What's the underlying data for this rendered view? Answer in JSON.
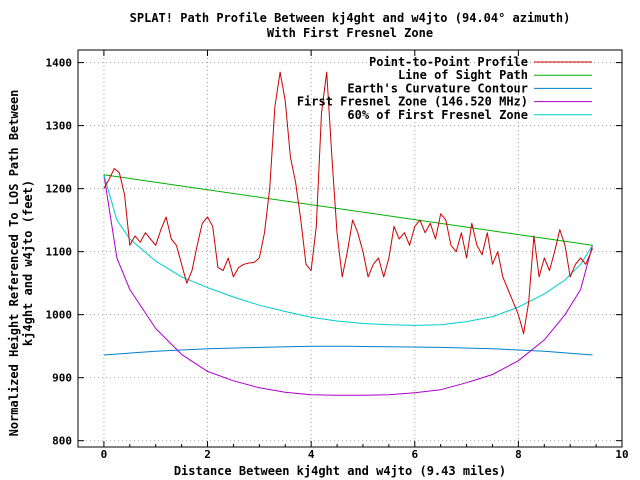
{
  "chart_data": {
    "type": "line",
    "title": "SPLAT! Path Profile Between kj4ght and w4jto (94.04° azimuth)",
    "subtitle": "With First Fresnel Zone",
    "xlabel": "Distance Between kj4ght and w4jto (9.43 miles)",
    "ylabel_line1": "Normalized Height Referenced To LOS Path Between",
    "ylabel_line2": "kj4ght and w4jto (feet)",
    "xlim": [
      -0.5,
      10
    ],
    "ylim": [
      790,
      1420
    ],
    "x_ticks": [
      0,
      2,
      4,
      6,
      8,
      10
    ],
    "y_ticks": [
      800,
      900,
      1000,
      1100,
      1200,
      1300,
      1400
    ],
    "grid": true,
    "legend_position": "top-right",
    "series": [
      {
        "name": "Point-to-Point Profile",
        "color": "#cc0000",
        "x": [
          0,
          0.1,
          0.2,
          0.3,
          0.4,
          0.5,
          0.6,
          0.7,
          0.8,
          0.9,
          1.0,
          1.1,
          1.2,
          1.3,
          1.4,
          1.5,
          1.6,
          1.7,
          1.8,
          1.9,
          2.0,
          2.1,
          2.2,
          2.3,
          2.4,
          2.5,
          2.6,
          2.7,
          2.8,
          2.9,
          3.0,
          3.1,
          3.2,
          3.3,
          3.4,
          3.5,
          3.6,
          3.7,
          3.8,
          3.9,
          4.0,
          4.1,
          4.2,
          4.3,
          4.4,
          4.5,
          4.6,
          4.7,
          4.8,
          4.9,
          5.0,
          5.1,
          5.2,
          5.3,
          5.4,
          5.5,
          5.6,
          5.7,
          5.8,
          5.9,
          6.0,
          6.1,
          6.2,
          6.3,
          6.4,
          6.5,
          6.6,
          6.7,
          6.8,
          6.9,
          7.0,
          7.1,
          7.2,
          7.3,
          7.4,
          7.5,
          7.6,
          7.7,
          7.8,
          7.9,
          8.0,
          8.1,
          8.2,
          8.3,
          8.4,
          8.5,
          8.6,
          8.7,
          8.8,
          8.9,
          9.0,
          9.1,
          9.2,
          9.3,
          9.43
        ],
        "y": [
          1200,
          1215,
          1232,
          1225,
          1190,
          1110,
          1125,
          1115,
          1130,
          1120,
          1110,
          1135,
          1155,
          1120,
          1110,
          1080,
          1050,
          1070,
          1110,
          1145,
          1155,
          1140,
          1075,
          1070,
          1090,
          1060,
          1075,
          1080,
          1082,
          1083,
          1090,
          1130,
          1200,
          1330,
          1385,
          1340,
          1250,
          1210,
          1150,
          1080,
          1070,
          1140,
          1320,
          1385,
          1250,
          1130,
          1060,
          1100,
          1150,
          1130,
          1100,
          1060,
          1080,
          1090,
          1060,
          1090,
          1140,
          1120,
          1130,
          1110,
          1140,
          1150,
          1130,
          1145,
          1120,
          1160,
          1150,
          1110,
          1100,
          1130,
          1090,
          1145,
          1110,
          1095,
          1130,
          1080,
          1100,
          1060,
          1040,
          1020,
          1000,
          970,
          1020,
          1125,
          1060,
          1090,
          1070,
          1100,
          1135,
          1110,
          1060,
          1080,
          1090,
          1080,
          1105
        ]
      },
      {
        "name": "Line of Sight Path",
        "color": "#00b000",
        "x": [
          0,
          9.43
        ],
        "y": [
          1222,
          1110
        ]
      },
      {
        "name": "Earth's Curvature Contour",
        "color": "#0080cc",
        "x": [
          0,
          1,
          2,
          3,
          4,
          4.715,
          5.5,
          6.5,
          7.5,
          8.5,
          9.43
        ],
        "y": [
          936,
          942,
          946,
          948,
          950,
          950,
          949,
          948,
          946,
          942,
          936
        ]
      },
      {
        "name": "First Fresnel Zone (146.520 MHz)",
        "color": "#aa00cc",
        "x": [
          0,
          0.25,
          0.5,
          1.0,
          1.5,
          2.0,
          2.5,
          3.0,
          3.5,
          4.0,
          4.5,
          5.0,
          5.5,
          6.0,
          6.5,
          7.0,
          7.5,
          8.0,
          8.5,
          8.9,
          9.2,
          9.43
        ],
        "y": [
          1222,
          1090,
          1040,
          978,
          937,
          910,
          895,
          884,
          877,
          873,
          872,
          872,
          873,
          876,
          881,
          892,
          905,
          927,
          960,
          1000,
          1040,
          1110
        ]
      },
      {
        "name": "60% of First Fresnel Zone",
        "color": "#00cccc",
        "x": [
          0,
          0.25,
          0.5,
          1.0,
          1.5,
          2.0,
          2.5,
          3.0,
          3.5,
          4.0,
          4.5,
          5.0,
          5.5,
          6.0,
          6.5,
          7.0,
          7.5,
          8.0,
          8.5,
          8.9,
          9.2,
          9.43
        ],
        "y": [
          1222,
          1150,
          1120,
          1085,
          1060,
          1043,
          1028,
          1015,
          1005,
          996,
          990,
          986,
          984,
          983,
          984,
          989,
          997,
          1012,
          1033,
          1055,
          1080,
          1110
        ]
      }
    ]
  }
}
